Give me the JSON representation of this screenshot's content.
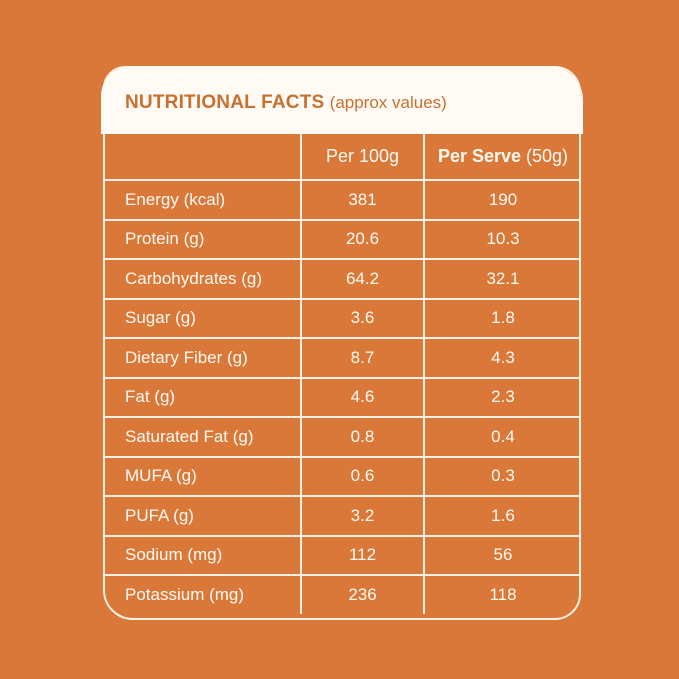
{
  "title": {
    "main": "NUTRITIONAL FACTS",
    "sub": "(approx values)"
  },
  "columns": {
    "per100": "Per 100g",
    "serve_bold": "Per Serve",
    "serve_rest": "(50g)"
  },
  "rows": [
    {
      "name": "Energy (kcal)",
      "per100": "381",
      "serve": "190"
    },
    {
      "name": "Protein (g)",
      "per100": "20.6",
      "serve": "10.3"
    },
    {
      "name": "Carbohydrates (g)",
      "per100": "64.2",
      "serve": "32.1"
    },
    {
      "name": "Sugar (g)",
      "per100": "3.6",
      "serve": "1.8"
    },
    {
      "name": "Dietary Fiber (g)",
      "per100": "8.7",
      "serve": "4.3"
    },
    {
      "name": "Fat (g)",
      "per100": "4.6",
      "serve": "2.3"
    },
    {
      "name": "Saturated Fat (g)",
      "per100": "0.8",
      "serve": "0.4"
    },
    {
      "name": "MUFA (g)",
      "per100": "0.6",
      "serve": "0.3"
    },
    {
      "name": "PUFA (g)",
      "per100": "3.2",
      "serve": "1.6"
    },
    {
      "name": "Sodium (mg)",
      "per100": "112",
      "serve": "56"
    },
    {
      "name": "Potassium  (mg)",
      "per100": "236",
      "serve": "118"
    }
  ]
}
